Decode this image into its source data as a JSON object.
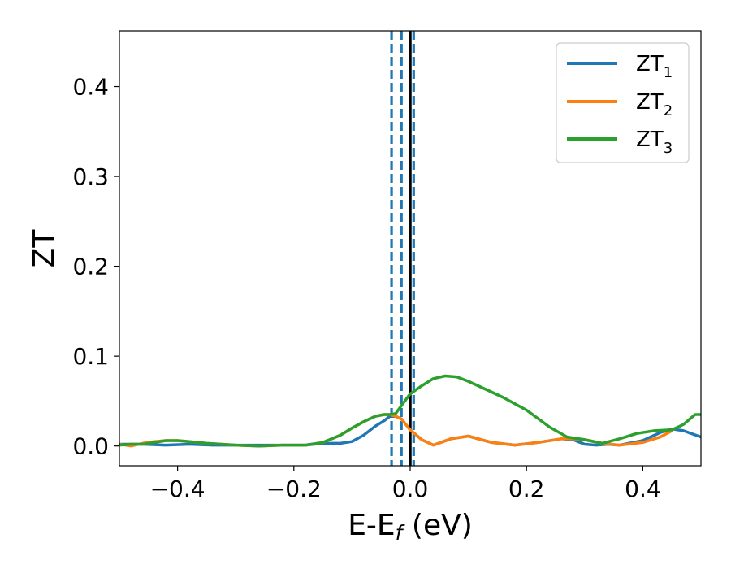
{
  "chart_data": {
    "type": "line",
    "xlabel": "E-E",
    "xlabel_sub": "f",
    "xlabel_unit": " (eV)",
    "ylabel": "ZT",
    "xlim": [
      -0.5,
      0.5
    ],
    "ylim": [
      -0.022,
      0.462
    ],
    "x_ticks": [
      -0.4,
      -0.2,
      0.0,
      0.2,
      0.4
    ],
    "x_tick_labels": [
      "−0.4",
      "−0.2",
      "0.0",
      "0.2",
      "0.4"
    ],
    "y_ticks": [
      0.0,
      0.1,
      0.2,
      0.3,
      0.4
    ],
    "y_tick_labels": [
      "0.0",
      "0.1",
      "0.2",
      "0.3",
      "0.4"
    ],
    "grid": false,
    "legend_position": "top-right",
    "vertical_lines": [
      {
        "x": -0.032,
        "color": "#1f77b4",
        "style": "dashed"
      },
      {
        "x": -0.015,
        "color": "#1f77b4",
        "style": "dashed"
      },
      {
        "x": 0.006,
        "color": "#1f77b4",
        "style": "dashed"
      },
      {
        "x": 0.0,
        "color": "#000000",
        "style": "solid"
      }
    ],
    "series": [
      {
        "name": "ZT",
        "sub": "1",
        "color": "#1f77b4",
        "x": [
          -0.5,
          -0.46,
          -0.42,
          -0.38,
          -0.34,
          -0.3,
          -0.26,
          -0.22,
          -0.18,
          -0.15,
          -0.12,
          -0.1,
          -0.08,
          -0.06,
          -0.045,
          -0.035,
          -0.025,
          -0.015,
          0.0,
          0.02,
          0.04,
          0.07,
          0.1,
          0.14,
          0.18,
          0.22,
          0.26,
          0.28,
          0.3,
          0.32,
          0.34,
          0.36,
          0.4,
          0.43,
          0.45,
          0.47,
          0.5
        ],
        "y": [
          0.002,
          0.002,
          0.001,
          0.002,
          0.001,
          0.001,
          0.001,
          0.001,
          0.001,
          0.003,
          0.003,
          0.005,
          0.012,
          0.022,
          0.028,
          0.033,
          0.033,
          0.03,
          0.018,
          0.007,
          0.001,
          0.008,
          0.011,
          0.004,
          0.001,
          0.004,
          0.008,
          0.007,
          0.002,
          0.001,
          0.002,
          0.001,
          0.006,
          0.015,
          0.019,
          0.017,
          0.01
        ]
      },
      {
        "name": "ZT",
        "sub": "2",
        "color": "#ff7f0e",
        "x": [
          -0.5,
          -0.48,
          -0.46,
          -0.44,
          -0.42,
          -0.4,
          -0.38,
          -0.35,
          -0.3,
          -0.26,
          -0.22,
          -0.18,
          -0.15,
          -0.12,
          -0.1,
          -0.08,
          -0.06,
          -0.045,
          -0.035,
          -0.025,
          -0.015,
          0.0,
          0.02,
          0.04,
          0.07,
          0.1,
          0.14,
          0.18,
          0.22,
          0.26,
          0.28,
          0.3,
          0.33,
          0.36,
          0.4,
          0.43,
          0.45
        ],
        "y": [
          0.002,
          0.0,
          0.003,
          0.005,
          0.006,
          0.006,
          0.005,
          0.003,
          0.001,
          0.0,
          0.001,
          0.001,
          0.004,
          0.012,
          0.02,
          0.027,
          0.033,
          0.035,
          0.035,
          0.033,
          0.03,
          0.018,
          0.007,
          0.001,
          0.008,
          0.011,
          0.004,
          0.001,
          0.004,
          0.008,
          0.008,
          0.007,
          0.003,
          0.001,
          0.004,
          0.01,
          0.017
        ]
      },
      {
        "name": "ZT",
        "sub": "3",
        "color": "#2ca02c",
        "x": [
          -0.5,
          -0.48,
          -0.46,
          -0.44,
          -0.42,
          -0.4,
          -0.38,
          -0.35,
          -0.3,
          -0.26,
          -0.22,
          -0.18,
          -0.15,
          -0.12,
          -0.1,
          -0.08,
          -0.06,
          -0.045,
          -0.035,
          -0.025,
          -0.015,
          0.0,
          0.02,
          0.04,
          0.06,
          0.08,
          0.1,
          0.13,
          0.16,
          0.2,
          0.24,
          0.27,
          0.3,
          0.33,
          0.36,
          0.39,
          0.42,
          0.45,
          0.47,
          0.49,
          0.5
        ],
        "y": [
          0.001,
          0.002,
          0.002,
          0.004,
          0.006,
          0.006,
          0.005,
          0.003,
          0.001,
          0.0,
          0.001,
          0.001,
          0.004,
          0.012,
          0.02,
          0.027,
          0.033,
          0.035,
          0.035,
          0.036,
          0.045,
          0.058,
          0.067,
          0.075,
          0.078,
          0.077,
          0.072,
          0.063,
          0.054,
          0.04,
          0.021,
          0.01,
          0.007,
          0.003,
          0.008,
          0.014,
          0.017,
          0.018,
          0.024,
          0.035,
          0.035
        ]
      }
    ]
  }
}
